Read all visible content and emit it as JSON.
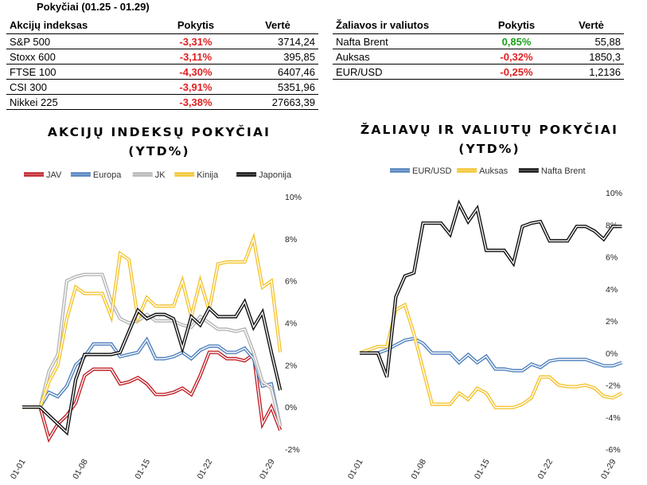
{
  "header": {
    "title": "Pokyčiai (01.25 - 01.29)"
  },
  "colors": {
    "negative": "#e02020",
    "positive": "#1aa01a"
  },
  "table_left": {
    "columns": [
      "Akcijų indeksas",
      "Pokytis",
      "Vertė"
    ],
    "rows": [
      {
        "name": "S&P 500",
        "change": "-3,31%",
        "value": "3714,24",
        "sign": "neg"
      },
      {
        "name": "Stoxx 600",
        "change": "-3,11%",
        "value": "395,85",
        "sign": "neg"
      },
      {
        "name": "FTSE 100",
        "change": "-4,30%",
        "value": "6407,46",
        "sign": "neg"
      },
      {
        "name": "CSI 300",
        "change": "-3,91%",
        "value": "5351,96",
        "sign": "neg"
      },
      {
        "name": "Nikkei 225",
        "change": "-3,38%",
        "value": "27663,39",
        "sign": "neg"
      }
    ]
  },
  "table_right": {
    "columns": [
      "Žaliavos ir valiutos",
      "Pokytis",
      "Vertė"
    ],
    "rows": [
      {
        "name": "Nafta Brent",
        "change": "0,85%",
        "value": "55,88",
        "sign": "pos"
      },
      {
        "name": "Auksas",
        "change": "-0,32%",
        "value": "1850,3",
        "sign": "neg"
      },
      {
        "name": "EUR/USD",
        "change": "-0,25%",
        "value": "1,2136",
        "sign": "neg"
      }
    ]
  },
  "chart_data": [
    {
      "type": "line",
      "title_line1": "AKCIJŲ INDEKSŲ POKYČIAI",
      "title_line2": "(YTD%)",
      "legend_position": "top",
      "y_axis_side": "right",
      "ylim": [
        -2,
        10
      ],
      "yticks": [
        -2,
        0,
        2,
        4,
        6,
        8,
        10
      ],
      "ytick_labels": [
        "-2%",
        "0%",
        "2%",
        "4%",
        "6%",
        "8%",
        "10%"
      ],
      "grid": false,
      "x_index_range": [
        0,
        28
      ],
      "xticks": [
        {
          "i": 0,
          "label": "01-01"
        },
        {
          "i": 7,
          "label": "01-08"
        },
        {
          "i": 14,
          "label": "01-15"
        },
        {
          "i": 21,
          "label": "01-22"
        },
        {
          "i": 28,
          "label": "01-29"
        }
      ],
      "series": [
        {
          "name": "JAV",
          "color": "#c0232b",
          "values": [
            0,
            0,
            0,
            -1.5,
            -0.8,
            -0.4,
            0.2,
            1.5,
            1.8,
            1.8,
            1.8,
            1.1,
            1.2,
            1.4,
            1.1,
            0.6,
            0.6,
            0.7,
            0.9,
            0.6,
            1.5,
            2.6,
            2.6,
            2.3,
            2.3,
            2.2,
            2.5,
            -0.8,
            0.0,
            -1.1
          ]
        },
        {
          "name": "Europa",
          "color": "#4f81bd",
          "values": [
            0,
            0,
            0,
            0.7,
            0.5,
            1.0,
            2.0,
            2.4,
            3.0,
            3.0,
            3.0,
            2.4,
            2.5,
            2.6,
            3.2,
            2.3,
            2.3,
            2.4,
            2.6,
            2.3,
            2.7,
            2.9,
            2.9,
            2.6,
            2.6,
            2.8,
            2.3,
            1.0,
            1.1,
            -0.9
          ]
        },
        {
          "name": "JK",
          "color": "#b5b5b5",
          "values": [
            0,
            0,
            0,
            1.7,
            2.5,
            6.0,
            6.2,
            6.3,
            6.3,
            6.3,
            5.0,
            4.2,
            4.0,
            4.1,
            4.4,
            4.1,
            4.1,
            4.1,
            3.9,
            3.8,
            4.3,
            4.0,
            3.7,
            3.7,
            3.6,
            3.7,
            2.6,
            1.2,
            0.9,
            -0.9
          ]
        },
        {
          "name": "Kinija",
          "color": "#f4c430",
          "values": [
            0,
            0,
            0,
            1.2,
            2.0,
            4.2,
            5.7,
            5.4,
            5.4,
            5.4,
            4.3,
            7.3,
            7.0,
            4.2,
            5.2,
            4.8,
            4.8,
            4.8,
            6.0,
            4.3,
            6.0,
            4.6,
            6.8,
            6.9,
            6.9,
            6.9,
            8.0,
            5.7,
            6.0,
            2.6
          ]
        },
        {
          "name": "Japonija",
          "color": "#111111",
          "values": [
            0,
            0,
            0,
            -0.4,
            -0.8,
            -1.2,
            1.3,
            2.5,
            2.5,
            2.5,
            2.5,
            2.6,
            3.6,
            4.6,
            4.2,
            4.4,
            4.4,
            4.2,
            2.8,
            4.3,
            3.9,
            4.7,
            4.3,
            4.3,
            4.3,
            5.0,
            3.8,
            4.5,
            2.6,
            0.8
          ]
        }
      ]
    },
    {
      "type": "line",
      "title_line1": "ŽALIAVŲ IR VALIUTŲ POKYČIAI",
      "title_line2": "(YTD%)",
      "legend_position": "top",
      "y_axis_side": "right",
      "ylim": [
        -6,
        10
      ],
      "yticks": [
        -6,
        -4,
        -2,
        0,
        2,
        4,
        6,
        8,
        10
      ],
      "ytick_labels": [
        "-6%",
        "-4%",
        "-2%",
        "0%",
        "2%",
        "4%",
        "6%",
        "8%",
        "10%"
      ],
      "grid": false,
      "x_index_range": [
        0,
        28
      ],
      "xticks": [
        {
          "i": 0,
          "label": "01-01"
        },
        {
          "i": 7,
          "label": "01-08"
        },
        {
          "i": 14,
          "label": "01-15"
        },
        {
          "i": 21,
          "label": "01-22"
        },
        {
          "i": 28,
          "label": "01-29"
        }
      ],
      "series": [
        {
          "name": "EUR/USD",
          "color": "#4f81bd",
          "values": [
            0,
            0,
            0,
            0.2,
            0.5,
            0.8,
            0.9,
            0.6,
            0.0,
            0.0,
            0.0,
            -0.6,
            -0.1,
            -0.6,
            -0.2,
            -1.0,
            -1.0,
            -1.1,
            -1.1,
            -0.7,
            -0.9,
            -0.5,
            -0.4,
            -0.4,
            -0.4,
            -0.4,
            -0.6,
            -0.8,
            -0.8,
            -0.6
          ]
        },
        {
          "name": "Auksas",
          "color": "#f4c430",
          "values": [
            0,
            0.2,
            0.4,
            0.4,
            2.7,
            3.0,
            1.2,
            -1.0,
            -3.2,
            -3.2,
            -3.2,
            -2.5,
            -2.9,
            -2.2,
            -2.5,
            -3.4,
            -3.4,
            -3.4,
            -3.2,
            -2.8,
            -1.5,
            -1.5,
            -2.0,
            -2.1,
            -2.1,
            -2.0,
            -2.2,
            -2.7,
            -2.8,
            -2.5
          ]
        },
        {
          "name": "Nafta Brent",
          "color": "#111111",
          "values": [
            0,
            0,
            0,
            -1.5,
            3.5,
            4.8,
            5.0,
            8.1,
            8.1,
            8.1,
            7.4,
            9.3,
            8.2,
            9.0,
            6.4,
            6.4,
            6.4,
            5.6,
            7.9,
            8.1,
            8.2,
            7.0,
            7.0,
            7.0,
            7.9,
            7.9,
            7.6,
            7.1,
            7.9,
            7.9
          ]
        }
      ]
    }
  ]
}
